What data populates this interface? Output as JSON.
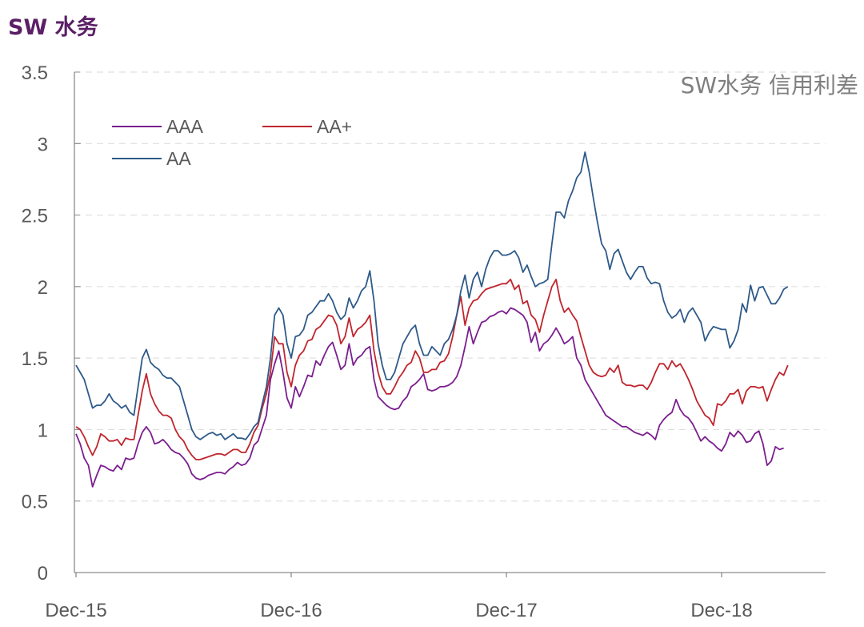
{
  "header": {
    "title": "SW 水务"
  },
  "chart_data": {
    "type": "line",
    "title": "SW水务 信用利差",
    "xlabel": "",
    "ylabel": "",
    "ylim": [
      0,
      3.5
    ],
    "yticks": [
      "0",
      "0.5",
      "1",
      "1.5",
      "2",
      "2.5",
      "3",
      "3.5"
    ],
    "xticks": [
      "Dec-15",
      "Dec-16",
      "Dec-17",
      "Dec-18"
    ],
    "grid": "horizontal dashed",
    "legend": "top-left",
    "x_points_per_year": 52,
    "series": [
      {
        "name": "AAA",
        "color": "#7b1e8e",
        "values": [
          0.97,
          0.9,
          0.8,
          0.75,
          0.6,
          0.68,
          0.75,
          0.74,
          0.72,
          0.71,
          0.75,
          0.72,
          0.8,
          0.79,
          0.8,
          0.9,
          0.98,
          1.02,
          0.98,
          0.9,
          0.91,
          0.93,
          0.9,
          0.86,
          0.84,
          0.83,
          0.8,
          0.76,
          0.69,
          0.66,
          0.65,
          0.66,
          0.68,
          0.69,
          0.7,
          0.7,
          0.69,
          0.72,
          0.74,
          0.77,
          0.75,
          0.76,
          0.8,
          0.89,
          0.92,
          1.01,
          1.1,
          1.35,
          1.46,
          1.55,
          1.4,
          1.22,
          1.15,
          1.3,
          1.23,
          1.3,
          1.38,
          1.37,
          1.48,
          1.45,
          1.52,
          1.58,
          1.61,
          1.52,
          1.42,
          1.45,
          1.6,
          1.45,
          1.5,
          1.52,
          1.56,
          1.58,
          1.35,
          1.23,
          1.2,
          1.17,
          1.15,
          1.14,
          1.15,
          1.2,
          1.23,
          1.3,
          1.32,
          1.35,
          1.39,
          1.28,
          1.27,
          1.28,
          1.3,
          1.3,
          1.31,
          1.33,
          1.37,
          1.45,
          1.58,
          1.72,
          1.6,
          1.68,
          1.75,
          1.76,
          1.79,
          1.8,
          1.82,
          1.83,
          1.81,
          1.85,
          1.84,
          1.82,
          1.8,
          1.75,
          1.61,
          1.68,
          1.55,
          1.6,
          1.62,
          1.66,
          1.71,
          1.66,
          1.6,
          1.62,
          1.65,
          1.5,
          1.45,
          1.35,
          1.3,
          1.25,
          1.2,
          1.15,
          1.1,
          1.08,
          1.06,
          1.04,
          1.02,
          1.02,
          1.0,
          0.98,
          0.97,
          0.96,
          0.98,
          0.96,
          0.93,
          1.03,
          1.07,
          1.1,
          1.12,
          1.21,
          1.14,
          1.1,
          1.08,
          1.04,
          0.98,
          0.92,
          0.95,
          0.92,
          0.9,
          0.87,
          0.85,
          0.9,
          0.98,
          0.95,
          0.99,
          0.96,
          0.91,
          0.92,
          0.97,
          0.99,
          0.9,
          0.75,
          0.78,
          0.88,
          0.86,
          0.87
        ]
      },
      {
        "name": "AA+",
        "color": "#c0252d",
        "values": [
          1.02,
          1.0,
          0.95,
          0.88,
          0.82,
          0.88,
          0.97,
          0.95,
          0.92,
          0.92,
          0.93,
          0.89,
          0.94,
          0.93,
          0.93,
          1.1,
          1.27,
          1.39,
          1.25,
          1.18,
          1.13,
          1.1,
          1.1,
          1.08,
          1.0,
          0.95,
          0.92,
          0.86,
          0.82,
          0.79,
          0.79,
          0.8,
          0.81,
          0.82,
          0.83,
          0.83,
          0.82,
          0.84,
          0.86,
          0.86,
          0.84,
          0.84,
          0.9,
          0.98,
          1.03,
          1.15,
          1.25,
          1.4,
          1.65,
          1.6,
          1.6,
          1.4,
          1.3,
          1.45,
          1.52,
          1.55,
          1.62,
          1.63,
          1.7,
          1.72,
          1.76,
          1.8,
          1.79,
          1.73,
          1.6,
          1.65,
          1.78,
          1.65,
          1.7,
          1.72,
          1.75,
          1.8,
          1.55,
          1.4,
          1.3,
          1.25,
          1.25,
          1.3,
          1.36,
          1.4,
          1.45,
          1.47,
          1.55,
          1.5,
          1.4,
          1.4,
          1.42,
          1.42,
          1.47,
          1.48,
          1.53,
          1.65,
          1.8,
          1.93,
          1.73,
          1.85,
          1.9,
          1.91,
          1.95,
          1.98,
          1.99,
          2.0,
          2.01,
          2.02,
          2.02,
          2.05,
          1.98,
          2.01,
          1.88,
          1.9,
          1.8,
          1.77,
          1.68,
          1.8,
          1.9,
          2.0,
          2.05,
          1.9,
          1.82,
          1.85,
          1.8,
          1.76,
          1.65,
          1.55,
          1.45,
          1.4,
          1.38,
          1.37,
          1.38,
          1.43,
          1.4,
          1.45,
          1.33,
          1.31,
          1.31,
          1.3,
          1.31,
          1.31,
          1.28,
          1.33,
          1.4,
          1.46,
          1.46,
          1.42,
          1.48,
          1.44,
          1.46,
          1.41,
          1.35,
          1.28,
          1.2,
          1.15,
          1.1,
          1.08,
          1.03,
          1.18,
          1.17,
          1.2,
          1.25,
          1.25,
          1.28,
          1.18,
          1.27,
          1.3,
          1.3,
          1.29,
          1.3,
          1.2,
          1.28,
          1.35,
          1.4,
          1.38,
          1.45
        ]
      },
      {
        "name": "AA",
        "color": "#2e5a89",
        "values": [
          1.45,
          1.4,
          1.35,
          1.25,
          1.15,
          1.17,
          1.17,
          1.2,
          1.25,
          1.2,
          1.18,
          1.15,
          1.17,
          1.12,
          1.1,
          1.3,
          1.5,
          1.56,
          1.47,
          1.44,
          1.42,
          1.38,
          1.36,
          1.36,
          1.33,
          1.3,
          1.2,
          1.1,
          1.0,
          0.95,
          0.93,
          0.95,
          0.97,
          0.98,
          0.96,
          0.97,
          0.93,
          0.95,
          0.97,
          0.94,
          0.94,
          0.93,
          0.97,
          1.02,
          1.05,
          1.18,
          1.3,
          1.5,
          1.8,
          1.85,
          1.8,
          1.6,
          1.5,
          1.65,
          1.66,
          1.7,
          1.8,
          1.82,
          1.86,
          1.9,
          1.9,
          1.95,
          1.9,
          1.82,
          1.77,
          1.8,
          1.92,
          1.85,
          1.9,
          1.97,
          2.0,
          2.11,
          1.9,
          1.6,
          1.45,
          1.35,
          1.35,
          1.4,
          1.5,
          1.6,
          1.65,
          1.7,
          1.73,
          1.6,
          1.52,
          1.52,
          1.58,
          1.55,
          1.52,
          1.6,
          1.63,
          1.7,
          1.8,
          1.97,
          2.08,
          1.92,
          2.05,
          2.1,
          2.0,
          2.12,
          2.2,
          2.25,
          2.25,
          2.22,
          2.22,
          2.23,
          2.25,
          2.2,
          2.1,
          2.15,
          2.07,
          2.0,
          2.02,
          2.03,
          2.05,
          2.3,
          2.52,
          2.52,
          2.48,
          2.6,
          2.67,
          2.76,
          2.8,
          2.94,
          2.8,
          2.62,
          2.45,
          2.3,
          2.25,
          2.12,
          2.23,
          2.26,
          2.18,
          2.1,
          2.05,
          2.1,
          2.14,
          2.14,
          2.06,
          2.02,
          2.03,
          2.02,
          1.9,
          1.82,
          1.78,
          1.8,
          1.84,
          1.75,
          1.82,
          1.85,
          1.8,
          1.75,
          1.62,
          1.68,
          1.72,
          1.71,
          1.7,
          1.7,
          1.57,
          1.62,
          1.7,
          1.88,
          1.82,
          2.01,
          1.9,
          1.99,
          2.0,
          1.94,
          1.88,
          1.88,
          1.92,
          1.98,
          2.0
        ]
      }
    ]
  }
}
